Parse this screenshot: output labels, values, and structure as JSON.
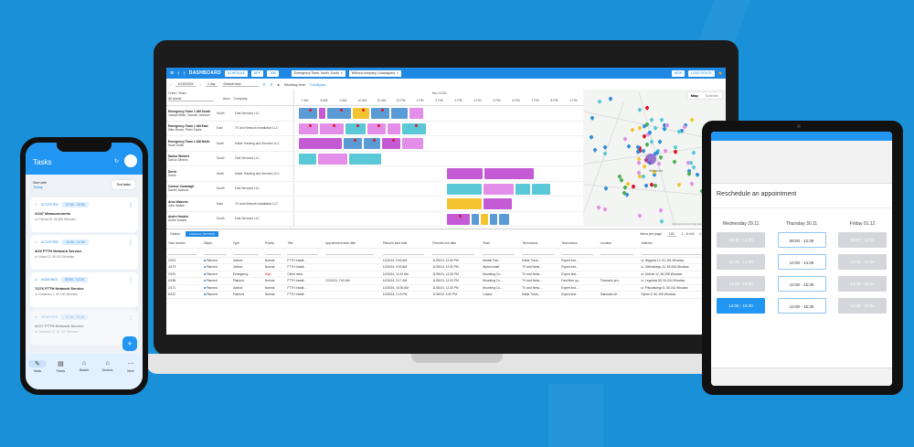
{
  "laptop": {
    "topbar": {
      "title": "DASHBOARD",
      "buttons": [
        "SCHEDULE",
        "APP",
        "JOB"
      ],
      "filter_chips": [
        "Emergency Team, North, South",
        "Without company, Unassigned"
      ],
      "right_buttons": [
        "NEW",
        "LOAD ROUTE"
      ]
    },
    "toolbar": {
      "date": "11/30/2024",
      "view": "1 day",
      "selector": "Default view",
      "working_time_label": "Working time",
      "configure_link": "Configure"
    },
    "resources": {
      "header": "Crew / Team",
      "filter": "All teams",
      "columns": [
        "Name",
        "Area",
        "Company"
      ],
      "rows": [
        {
          "name": "Emergency Team 1 AM South",
          "sub": "Joseph Miller, Samuel Johnson",
          "area": "South",
          "company": "Fast Services LLC"
        },
        {
          "name": "Emergency Team 1 AM East",
          "sub": "Mike Brown, Peter Taylor",
          "area": "East",
          "company": "TV and Network Installation LLC"
        },
        {
          "name": "Emergency Team 1 AM North",
          "sub": "Noah Smith",
          "area": "North",
          "company": "Kable Tracking and Services LLC"
        },
        {
          "name": "Darius Winters",
          "sub": "Darius Winters",
          "area": "South",
          "company": "Fast Services LLC"
        },
        {
          "name": "Derek",
          "sub": "Derek",
          "area": "North",
          "company": "Kable Tracking and Services LLC"
        },
        {
          "name": "Connor Cavanagh",
          "sub": "Daniel Jackson",
          "area": "South",
          "company": "Fast Services LLC"
        },
        {
          "name": "Arno Wassels",
          "sub": "John Walker",
          "area": "East",
          "company": "TV and Network Installation LLC"
        },
        {
          "name": "Andre Husted",
          "sub": "Andre Husted",
          "area": "South",
          "company": "Fast Services LLC"
        }
      ]
    },
    "gantt": {
      "date_header": "Nov 11/30",
      "hours": [
        "7 AM",
        "8 AM",
        "9 AM",
        "10 AM",
        "11 AM",
        "12 PM",
        "1 PM",
        "2 PM",
        "3 PM",
        "4 PM",
        "5 PM",
        "6 PM",
        "7 PM",
        "8 PM",
        "9 PM"
      ]
    },
    "map": {
      "tabs": [
        "Map",
        "Satellite"
      ],
      "city_label": "Wroclaw",
      "footer": "Keyboard shortcuts  Map data ©2024 Google  Terms"
    },
    "bottom": {
      "label": "Orders",
      "button": "LOAD ALL OPTIONS",
      "items_per_page_label": "Items per page",
      "items_per_page": "100",
      "range": "1 - 6 of 6",
      "columns": [
        "Task number",
        "Status",
        "Type",
        "Priority",
        "Title",
        "Appointment start date",
        "Planned start date",
        "Planned end date",
        "Team",
        "Technicians",
        "Technicians",
        "Location",
        "Address"
      ],
      "rows": [
        [
          "2/201",
          "Planned",
          "Jobbox",
          "Normal",
          "FTTH Install...",
          "",
          "11/30/24, 9:00 AM",
          "11/30/24, 12:30 PM",
          "Mariah Pad...",
          "Kable Track...",
          "Expert inst...",
          "",
          "ul. Wygoda 12, 51-151 Wroclaw"
        ],
        [
          "4/173",
          "Planned",
          "Jobbox",
          "Normal",
          "FTTH Install...",
          "",
          "11/30/24, 9:30 AM",
          "11/30/24, 12:30 PM",
          "Alpha install.",
          "TV and Netw...",
          "Expert inst...",
          "",
          "ul. Zielinskiego 24, 53-534 Wroclaw"
        ],
        [
          "2/191",
          "Planned",
          "Emergency",
          "High",
          "Client netw...",
          "",
          "11/30/24, 11:24 AM",
          "11/30/24, 12:30 PM",
          "Mounting Co...",
          "TV and Netw...",
          "Expert test...",
          "",
          "ul. Dubois 12, 50-208 Wroclaw"
        ],
        [
          "6/186",
          "Planned",
          "Planned",
          "Normal",
          "FTTH Install...",
          "12/10/24, 7:00 AM",
          "11/30/24, 9:17 AM",
          "11/30/24, 12:30 PM",
          "Mounting Co...",
          "TV and Netw...",
          "Fast fiber op...",
          "Thomas's pro...",
          "ul. Legnicka 55, 54-204 Wroclaw"
        ],
        [
          "2/171",
          "Planned",
          "Jobbox",
          "Normal",
          "FTTH Install...",
          "",
          "11/30/24, 10:30 AM",
          "11/30/24, 12:30 PM",
          "Mounting Co...",
          "TV and Netw...",
          "Expert inst...",
          "",
          "ul. Pilsudskiego 5, 50-014 Wroclaw"
        ],
        [
          "6/187",
          "Planned",
          "Planned",
          "Normal",
          "FTTH Install...",
          "",
          "11/30/24, 2:15 PM",
          "11/30/24, 4:00 PM",
          "Lukasz",
          "Kable Track...",
          "Expert test...",
          "Starowka str...",
          "Rynek 5, 50-106 Wroclaw"
        ]
      ]
    }
  },
  "phone": {
    "title": "Tasks",
    "meta_label": "Start date",
    "meta_value": "Today",
    "sort_button": "Sort tasks",
    "cards": [
      {
        "status": "ACCEPTED",
        "time": "07:30 - 10:30",
        "title": "2/247 Measurements",
        "address": "ul. Piekna 25, 50-505 Wroclaw"
      },
      {
        "status": "ACCEPTED",
        "time": "10:30 - 12:30",
        "title": "4/19 FTTH Network Service",
        "address": "ul. Nowa 12, 50-012 Wroclaw"
      },
      {
        "status": "ASSIGNED",
        "time": "09:55 - 12:15",
        "title": "7/276 FTTH Network Service",
        "address": "ul. Kwiatowa 1, 50-100 Wroclaw"
      },
      {
        "status": "REJECTED",
        "time": "12:15 - 13:45",
        "title": "2/277 FTTH Network Service",
        "address": "ul. Jednosci 10, 51-100 Wroclaw"
      }
    ],
    "fab": "+",
    "nav": [
      "Tasks",
      "Forms",
      "Basket",
      "Devices",
      "More"
    ]
  },
  "tablet": {
    "title": "Reschedule an appointment",
    "days": [
      {
        "label": "Wednesday 29.11",
        "slots": [
          {
            "t": "08:00 - 12:30",
            "s": "dis"
          },
          {
            "t": "12:30 - 14:30",
            "s": "dis"
          },
          {
            "t": "14:00 - 15:30",
            "s": "dis"
          },
          {
            "t": "14:00 - 15:30",
            "s": "sel"
          }
        ]
      },
      {
        "label": "Thursday 30.11",
        "slots": [
          {
            "t": "08:00 - 12:30",
            "s": "av"
          },
          {
            "t": "12:00 - 14:30",
            "s": "av"
          },
          {
            "t": "14:00 - 15:30",
            "s": "av"
          },
          {
            "t": "14:00 - 15:30",
            "s": "av"
          }
        ]
      },
      {
        "label": "Friday 01.12",
        "slots": [
          {
            "t": "08:00 - 12:00",
            "s": "dis"
          },
          {
            "t": "12:00 - 14:00",
            "s": "dis"
          },
          {
            "t": "14:00 - 16:00",
            "s": "dis"
          },
          {
            "t": "15:00 - 16:00",
            "s": "dis"
          }
        ]
      }
    ]
  },
  "colors": {
    "background": "#1a90d9",
    "accent": "#1e88e5",
    "gantt_blue": "#5b9bd5",
    "gantt_pink": "#e38ee8",
    "gantt_magenta": "#c45bd4",
    "gantt_yellow": "#f4c430",
    "gantt_cyan": "#5bc8d8"
  }
}
